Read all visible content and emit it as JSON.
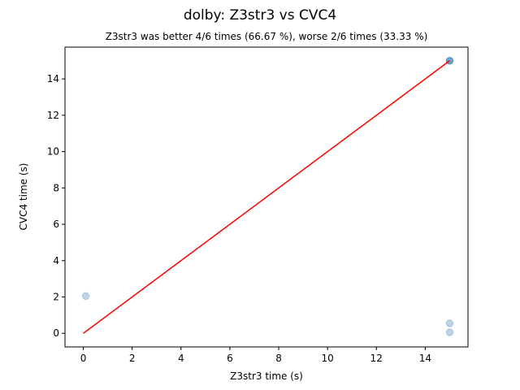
{
  "chart_data": {
    "type": "scatter",
    "suptitle": "dolby: Z3str3 vs CVC4",
    "title": "Z3str3 was better 4/6 times (66.67 %), worse 2/6 times (33.33 %)",
    "xlabel": "Z3str3 time (s)",
    "ylabel": "CVC4 time (s)",
    "xlim": [
      -0.75,
      15.75
    ],
    "ylim": [
      -0.75,
      15.75
    ],
    "xticks": [
      0,
      2,
      4,
      6,
      8,
      10,
      12,
      14
    ],
    "yticks": [
      0,
      2,
      4,
      6,
      8,
      10,
      12,
      14
    ],
    "grid": false,
    "series": [
      {
        "marker": "circle",
        "color": "#1f77b4",
        "alpha": 0.3,
        "points": [
          {
            "x": 0.1,
            "y": 2.05
          },
          {
            "x": 15.0,
            "y": 0.55
          },
          {
            "x": 15.0,
            "y": 0.05
          },
          {
            "x": 15.0,
            "y": 15.0
          },
          {
            "x": 15.0,
            "y": 15.0
          },
          {
            "x": 15.0,
            "y": 15.0
          }
        ]
      }
    ],
    "reference_line": {
      "from": [
        0,
        0
      ],
      "to": [
        15,
        15
      ],
      "color": "#ff0000"
    }
  }
}
